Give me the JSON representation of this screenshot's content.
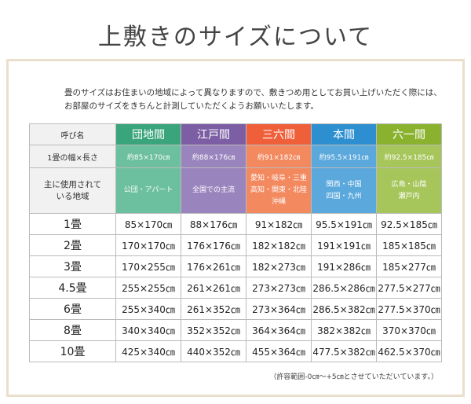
{
  "title": "上敷きのサイズについて",
  "intro": [
    "畳のサイズはお住まいの地域によって異なりますので、敷きつめ用としてお買い上げいただく際には、",
    "お部屋のサイズをきちんと計測していただくようお願いいたします。"
  ],
  "table": {
    "header": [
      "呼び名",
      "団地間",
      "江戸間",
      "三六間",
      "本間",
      "六一間"
    ],
    "rows": [
      [
        "1畳の幅×長さ",
        "約85×170㎝",
        "約88×176㎝",
        "約91×182㎝",
        "約95.5×191㎝",
        "約92.5×185㎝"
      ],
      [
        [
          "主に使用されて",
          "いる地域"
        ],
        [
          "公団・アパート"
        ],
        [
          "全国での主流"
        ],
        [
          "愛知・岐阜・三重",
          "高知・関東・北陸",
          "沖縄"
        ],
        [
          "関西・中国",
          "四国・九州"
        ],
        [
          "広島・山陰",
          "瀬戸内"
        ]
      ],
      [
        "1畳",
        "85×170㎝",
        "88×176㎝",
        "91×182㎝",
        "95.5×191㎝",
        "92.5×185㎝"
      ],
      [
        "2畳",
        "170×170㎝",
        "176×176㎝",
        "182×182㎝",
        "191×191㎝",
        "185×185㎝"
      ],
      [
        "3畳",
        "170×255㎝",
        "176×261㎝",
        "182×273㎝",
        "191×286㎝",
        "185×277㎝"
      ],
      [
        "4.5畳",
        "255×255㎝",
        "261×261㎝",
        "273×273㎝",
        "286.5×286㎝",
        "277.5×277㎝"
      ],
      [
        "6畳",
        "255×340㎝",
        "261×352㎝",
        "273×364㎝",
        "286.5×382㎝",
        "277.5×370㎝"
      ],
      [
        "8畳",
        "340×340㎝",
        "352×352㎝",
        "364×364㎝",
        "382×382㎝",
        "370×370㎝"
      ],
      [
        "10畳",
        "425×340㎝",
        "440×352㎝",
        "455×364㎝",
        "477.5×382㎝",
        "462.5×370㎝"
      ]
    ]
  },
  "note": "（許容範囲-0㎝～+5㎝とさせていただいています。）"
}
